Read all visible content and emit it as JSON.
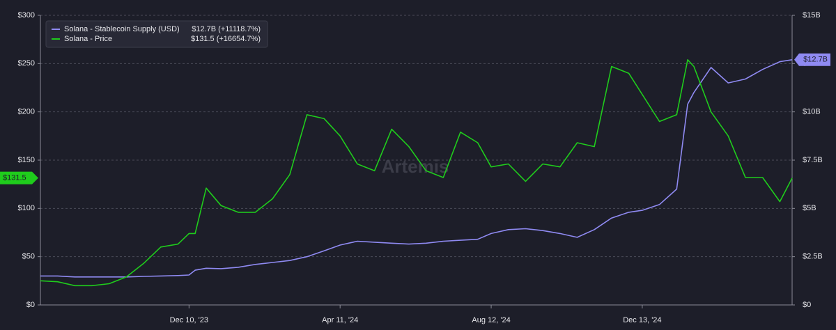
{
  "chart_data": {
    "type": "line",
    "watermark": "Artemis",
    "x": [
      "2023-08-11",
      "2023-08-25",
      "2023-09-08",
      "2023-09-22",
      "2023-10-06",
      "2023-10-20",
      "2023-11-03",
      "2023-11-17",
      "2023-12-01",
      "2023-12-10",
      "2023-12-15",
      "2023-12-24",
      "2024-01-05",
      "2024-01-19",
      "2024-02-02",
      "2024-02-16",
      "2024-03-01",
      "2024-03-15",
      "2024-03-29",
      "2024-04-11",
      "2024-04-25",
      "2024-05-09",
      "2024-05-23",
      "2024-06-06",
      "2024-06-20",
      "2024-07-04",
      "2024-07-18",
      "2024-08-01",
      "2024-08-12",
      "2024-08-26",
      "2024-09-09",
      "2024-09-23",
      "2024-10-07",
      "2024-10-21",
      "2024-11-04",
      "2024-11-18",
      "2024-12-02",
      "2024-12-13",
      "2024-12-27",
      "2025-01-10",
      "2025-01-19",
      "2025-01-24",
      "2025-02-07",
      "2025-02-21",
      "2025-03-07",
      "2025-03-21",
      "2025-04-04",
      "2025-04-14"
    ],
    "xlim": [
      "2023-08-11",
      "2025-04-14"
    ],
    "xticks": [
      {
        "value": "2023-12-10",
        "label": "Dec 10, '23"
      },
      {
        "value": "2024-04-11",
        "label": "Apr 11, '24"
      },
      {
        "value": "2024-08-12",
        "label": "Aug 12, '24"
      },
      {
        "value": "2024-12-13",
        "label": "Dec 13, '24"
      }
    ],
    "ylim": [
      0,
      300
    ],
    "yticks": [
      {
        "value": 0,
        "label": "$0"
      },
      {
        "value": 50,
        "label": "$50"
      },
      {
        "value": 100,
        "label": "$100"
      },
      {
        "value": 150,
        "label": "$150"
      },
      {
        "value": 200,
        "label": "$200"
      },
      {
        "value": 250,
        "label": "$250"
      },
      {
        "value": 300,
        "label": "$300"
      }
    ],
    "y2lim": [
      0,
      15
    ],
    "y2ticks": [
      {
        "value": 0,
        "label": "$0"
      },
      {
        "value": 2.5,
        "label": "$2.5B"
      },
      {
        "value": 5,
        "label": "$5B"
      },
      {
        "value": 7.5,
        "label": "$7.5B"
      },
      {
        "value": 10,
        "label": "$10B"
      },
      {
        "value": 12.5,
        "label": "$12.5B"
      },
      {
        "value": 15,
        "label": "$15B"
      }
    ],
    "grid": true,
    "series": [
      {
        "name": "Solana - Stablecoin Supply (USD)",
        "summary": "$12.7B (+11118.7%)",
        "color": "#8f8af2",
        "axis": "y2",
        "values": [
          1.5,
          1.5,
          1.45,
          1.45,
          1.45,
          1.45,
          1.48,
          1.5,
          1.52,
          1.55,
          1.8,
          1.9,
          1.88,
          1.95,
          2.1,
          2.2,
          2.3,
          2.5,
          2.8,
          3.1,
          3.3,
          3.25,
          3.2,
          3.15,
          3.2,
          3.3,
          3.35,
          3.4,
          3.7,
          3.9,
          3.95,
          3.85,
          3.7,
          3.5,
          3.9,
          4.5,
          4.8,
          4.9,
          5.2,
          6.0,
          10.4,
          11.0,
          12.3,
          11.5,
          11.7,
          12.2,
          12.6,
          12.7
        ],
        "value_labels": [
          null,
          null,
          null,
          null,
          null,
          null,
          null,
          null,
          null,
          null,
          null,
          null,
          null,
          null,
          null,
          null,
          null,
          null,
          null,
          null,
          null,
          null,
          null,
          null,
          null,
          null,
          null,
          null,
          null,
          null,
          null,
          null,
          null,
          null,
          null,
          null,
          null,
          null,
          null,
          null,
          null,
          null,
          null,
          null,
          null,
          null,
          null,
          "$12.7B"
        ]
      },
      {
        "name": "Solana - Price",
        "summary": "$131.5 (+16654.7%)",
        "color": "#1fcc1c",
        "axis": "y",
        "values": [
          25,
          24,
          20,
          20,
          22,
          29,
          43,
          60,
          63,
          74,
          74,
          121,
          103,
          96,
          96,
          110,
          135,
          197,
          193,
          175,
          146,
          139,
          182,
          164,
          139,
          132,
          179,
          168,
          143,
          146,
          128,
          146,
          143,
          168,
          164,
          247,
          240,
          218,
          190,
          197,
          254,
          247,
          200,
          175,
          132,
          132,
          107,
          131.5
        ],
        "value_labels": [
          null,
          null,
          null,
          null,
          null,
          null,
          null,
          null,
          null,
          null,
          null,
          null,
          null,
          null,
          null,
          null,
          null,
          null,
          null,
          null,
          null,
          null,
          null,
          null,
          null,
          null,
          null,
          null,
          null,
          null,
          null,
          null,
          null,
          null,
          null,
          null,
          null,
          null,
          null,
          null,
          null,
          null,
          null,
          null,
          null,
          null,
          null,
          "$131.5"
        ]
      }
    ]
  }
}
